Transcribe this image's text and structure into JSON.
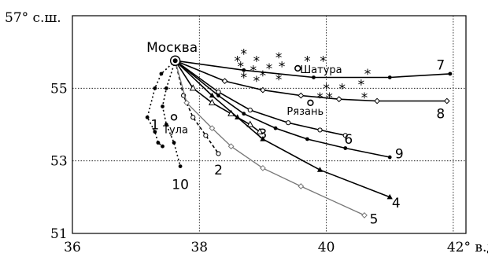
{
  "chart_data": {
    "type": "line",
    "xlim": [
      36,
      42.2
    ],
    "ylim": [
      51,
      57
    ],
    "x_ticks": [
      "36",
      "38",
      "40",
      "42° в.д."
    ],
    "y_ticks": [
      "51",
      "53",
      "55",
      "57° с.ш."
    ],
    "grid_x": [
      38,
      40,
      42
    ],
    "grid_y": [
      53,
      55
    ],
    "grid": "dotted",
    "cities": [
      {
        "name": "Москва",
        "x": 37.62,
        "y": 55.76,
        "size": "large"
      },
      {
        "name": "Шатура",
        "x": 39.55,
        "y": 55.55,
        "size": "small"
      },
      {
        "name": "Рязань",
        "x": 39.75,
        "y": 54.6,
        "size": "small"
      },
      {
        "name": "Тула",
        "x": 37.6,
        "y": 54.2,
        "size": "small"
      }
    ],
    "stars": [
      [
        38.7,
        55.95
      ],
      [
        38.9,
        55.75
      ],
      [
        39.25,
        55.85
      ],
      [
        39.7,
        55.75
      ],
      [
        39.95,
        55.75
      ],
      [
        38.6,
        55.75
      ],
      [
        38.85,
        55.5
      ],
      [
        38.65,
        55.6
      ],
      [
        39.1,
        55.55
      ],
      [
        39.3,
        55.6
      ],
      [
        38.7,
        55.3
      ],
      [
        38.9,
        55.2
      ],
      [
        39.0,
        55.35
      ],
      [
        39.25,
        55.25
      ],
      [
        40.0,
        55.0
      ],
      [
        40.25,
        55.0
      ],
      [
        40.55,
        55.1
      ],
      [
        39.9,
        54.75
      ],
      [
        40.05,
        54.75
      ],
      [
        40.6,
        54.75
      ],
      [
        40.65,
        55.4
      ]
    ],
    "series": [
      {
        "name": "1",
        "label_pos": [
          37.3,
          54.0
        ],
        "color": "#000000",
        "dash": "2,3",
        "marker": "dot",
        "x": [
          37.62,
          37.4,
          37.3,
          37.18,
          37.3,
          37.35,
          37.42
        ],
        "y": [
          55.76,
          55.4,
          55.0,
          54.2,
          53.8,
          53.5,
          53.4
        ]
      },
      {
        "name": "10",
        "label_pos": [
          37.7,
          52.35
        ],
        "color": "#000000",
        "dash": "2,3",
        "marker": "dot",
        "x": [
          37.62,
          37.48,
          37.42,
          37.48,
          37.6,
          37.7
        ],
        "y": [
          55.76,
          55.0,
          54.5,
          54.0,
          53.5,
          52.85
        ]
      },
      {
        "name": "2",
        "label_pos": [
          38.3,
          52.75
        ],
        "color": "#000000",
        "dash": "4,3",
        "marker": "open",
        "x": [
          37.62,
          37.75,
          37.9,
          38.1,
          38.3
        ],
        "y": [
          55.76,
          54.8,
          54.2,
          53.7,
          53.2
        ]
      },
      {
        "name": "5",
        "label_pos": [
          40.75,
          51.4
        ],
        "color": "#777777",
        "dash": "",
        "marker": "open-diamond",
        "x": [
          37.62,
          37.8,
          38.2,
          38.5,
          39.0,
          39.6,
          40.6
        ],
        "y": [
          55.76,
          54.6,
          53.9,
          53.4,
          52.8,
          52.3,
          51.5
        ]
      },
      {
        "name": "3",
        "label_pos": [
          39.0,
          53.75
        ],
        "color": "#000000",
        "dash": "",
        "marker": "open-triangle",
        "x": [
          37.62,
          37.9,
          38.2,
          38.5,
          38.8,
          38.95
        ],
        "y": [
          55.76,
          55.0,
          54.6,
          54.3,
          54.0,
          53.8
        ]
      },
      {
        "name": "4",
        "label_pos": [
          41.1,
          51.85
        ],
        "color": "#000000",
        "dash": "",
        "marker": "triangle",
        "x": [
          37.62,
          38.2,
          38.6,
          39.0,
          39.9,
          41.0
        ],
        "y": [
          55.76,
          54.8,
          54.2,
          53.6,
          52.75,
          52.0
        ]
      },
      {
        "name": "9",
        "label_pos": [
          41.15,
          53.2
        ],
        "color": "#000000",
        "dash": "",
        "marker": "dot",
        "x": [
          37.62,
          38.3,
          38.7,
          39.2,
          39.7,
          40.3,
          41.0
        ],
        "y": [
          55.76,
          54.8,
          54.3,
          53.9,
          53.6,
          53.35,
          53.1
        ]
      },
      {
        "name": "6",
        "label_pos": [
          40.35,
          53.6
        ],
        "color": "#000000",
        "dash": "",
        "marker": "open",
        "x": [
          37.62,
          38.3,
          38.8,
          39.4,
          39.9,
          40.3
        ],
        "y": [
          55.76,
          54.9,
          54.4,
          54.05,
          53.85,
          53.7
        ]
      },
      {
        "name": "8",
        "label_pos": [
          41.8,
          54.3
        ],
        "color": "#000000",
        "dash": "",
        "marker": "open-diamond",
        "x": [
          37.62,
          38.4,
          39.0,
          39.6,
          40.2,
          40.8,
          41.9
        ],
        "y": [
          55.76,
          55.2,
          54.95,
          54.8,
          54.7,
          54.65,
          54.65
        ]
      },
      {
        "name": "7",
        "label_pos": [
          41.8,
          55.65
        ],
        "color": "#000000",
        "dash": "",
        "marker": "dot",
        "x": [
          37.62,
          38.7,
          39.8,
          41.0,
          41.95
        ],
        "y": [
          55.76,
          55.5,
          55.3,
          55.3,
          55.4
        ]
      }
    ]
  }
}
